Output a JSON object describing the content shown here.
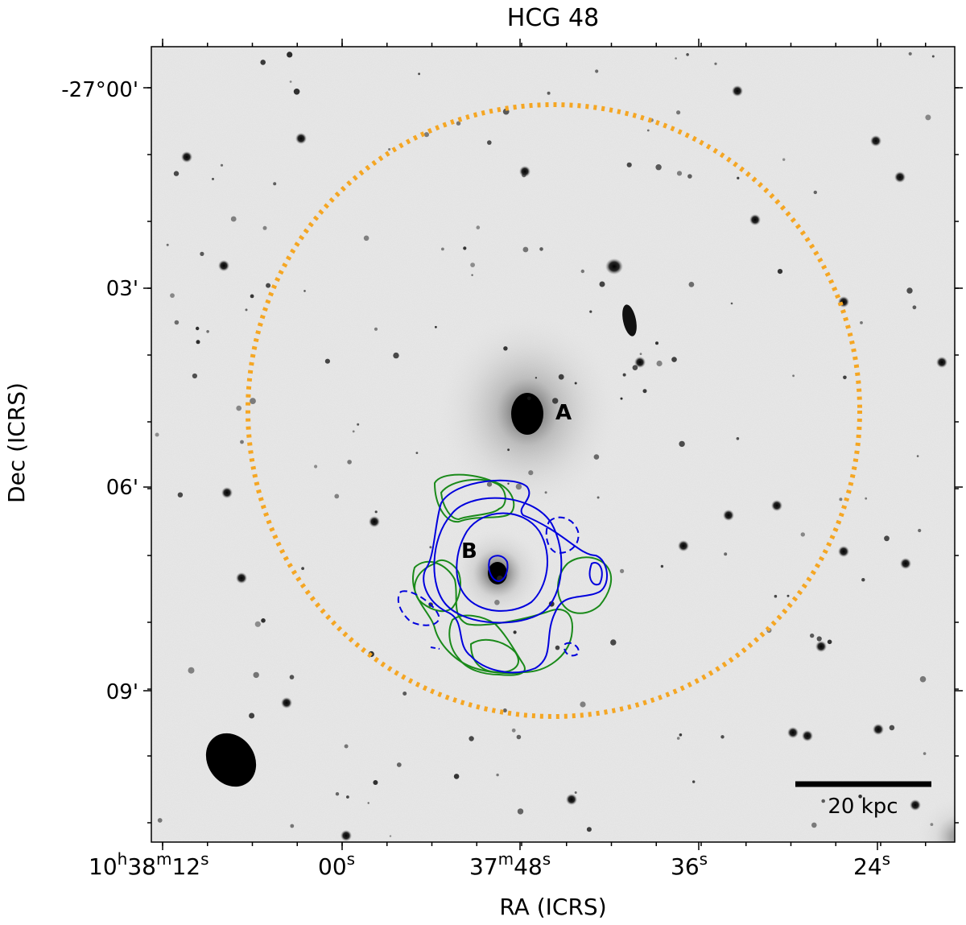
{
  "figure": {
    "title": "HCG 48",
    "xlabel": "RA (ICRS)",
    "ylabel": "Dec (ICRS)",
    "ra_ticks": [
      {
        "main": "10",
        "sup1": "h",
        "mid": "38",
        "sup2": "m",
        "end": "12",
        "sup3": "s"
      },
      {
        "main": "00",
        "sup1": "s"
      },
      {
        "main": "37",
        "sup1": "m",
        "mid": "48",
        "sup2": "s"
      },
      {
        "main": "36",
        "sup1": "s"
      },
      {
        "main": "24",
        "sup1": "s"
      }
    ],
    "dec_ticks": [
      "-27°00'",
      "03'",
      "06'",
      "09'"
    ],
    "galaxy_labels": [
      "A",
      "B"
    ],
    "scalebar_label": "20 kpc",
    "colors": {
      "circle": "#f5a623",
      "contour_blue": "#0000dd",
      "contour_green": "#1a8a1a",
      "background": "#e9e9e9"
    }
  }
}
